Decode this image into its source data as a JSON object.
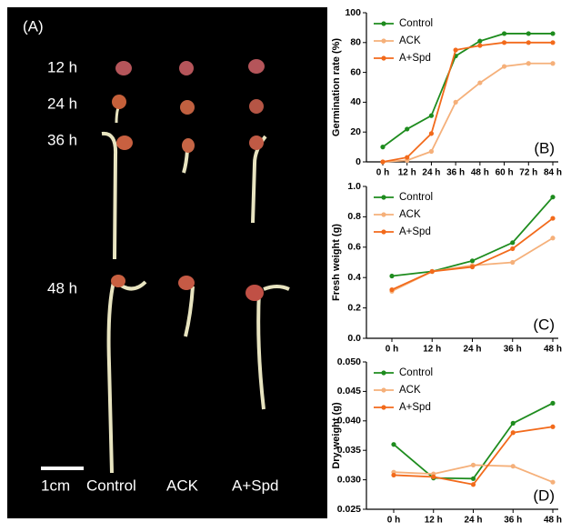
{
  "photo_panel": {
    "panel_label": "(A)",
    "time_labels": [
      "12 h",
      "24 h",
      "36 h",
      "48 h"
    ],
    "scale_label": "1cm",
    "treatment_labels": [
      "Control",
      "ACK",
      "A+Spd"
    ]
  },
  "chart_data": [
    {
      "type": "line",
      "panel_label": "(B)",
      "y_label": "Germination rate (%)",
      "categories": [
        "0 h",
        "12 h",
        "24 h",
        "36 h",
        "48 h",
        "60 h",
        "72 h",
        "84 h"
      ],
      "ylim": [
        0,
        100
      ],
      "yticks": [
        0,
        20,
        40,
        60,
        80,
        100
      ],
      "legend": "top-left",
      "series": [
        {
          "name": "Control",
          "color": "#1e8c1e",
          "values": [
            10,
            22,
            31,
            71,
            81,
            86,
            86,
            86
          ]
        },
        {
          "name": "ACK",
          "color": "#f5b07a",
          "values": [
            0,
            1,
            7,
            40,
            53,
            64,
            66,
            66
          ]
        },
        {
          "name": "A+Spd",
          "color": "#f26a1b",
          "values": [
            0,
            3,
            19,
            75,
            78,
            80,
            80,
            80
          ]
        }
      ]
    },
    {
      "type": "line",
      "panel_label": "(C)",
      "y_label": "Fresh weight (g)",
      "categories": [
        "0 h",
        "12 h",
        "24 h",
        "36 h",
        "48 h"
      ],
      "ylim": [
        0,
        1
      ],
      "yticks": [
        {
          "value": 0,
          "label": "0.0"
        },
        0.2,
        0.4,
        0.6,
        0.8,
        {
          "value": 1,
          "label": "1.0"
        }
      ],
      "legend": "top-left",
      "series": [
        {
          "name": "Control",
          "color": "#1e8c1e",
          "values": [
            0.41,
            0.44,
            0.51,
            0.63,
            0.93
          ]
        },
        {
          "name": "ACK",
          "color": "#f5b07a",
          "values": [
            0.31,
            0.44,
            0.48,
            0.5,
            0.66
          ]
        },
        {
          "name": "A+Spd",
          "color": "#f26a1b",
          "values": [
            0.32,
            0.44,
            0.47,
            0.59,
            0.79
          ]
        }
      ]
    },
    {
      "type": "line",
      "panel_label": "(D)",
      "y_label": "Dry weight (g)",
      "categories": [
        "0 h",
        "12 h",
        "24 h",
        "36 h",
        "48 h"
      ],
      "ylim": [
        0.025,
        0.05
      ],
      "yticks": [
        0.025,
        {
          "value": 0.03,
          "label": "0.030"
        },
        0.035,
        {
          "value": 0.04,
          "label": "0.040"
        },
        0.045,
        {
          "value": 0.05,
          "label": "0.050"
        }
      ],
      "legend": "top-left",
      "series": [
        {
          "name": "Control",
          "color": "#1e8c1e",
          "values": [
            0.036,
            0.0303,
            0.0302,
            0.0396,
            0.043
          ]
        },
        {
          "name": "ACK",
          "color": "#f5b07a",
          "values": [
            0.0313,
            0.031,
            0.0325,
            0.0323,
            0.0296
          ]
        },
        {
          "name": "A+Spd",
          "color": "#f26a1b",
          "values": [
            0.0308,
            0.0305,
            0.0292,
            0.038,
            0.039
          ]
        }
      ]
    }
  ]
}
